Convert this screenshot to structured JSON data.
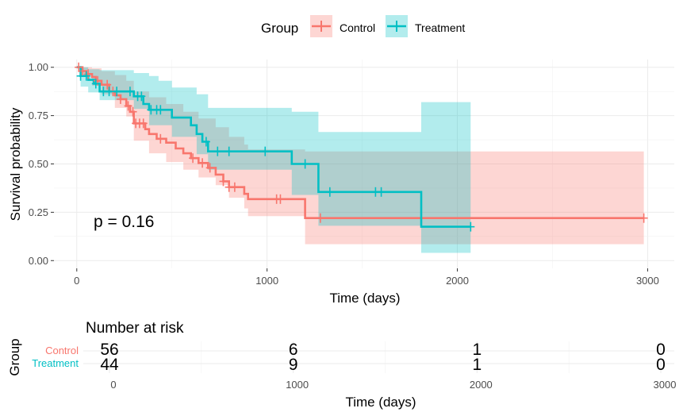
{
  "chart_data": [
    {
      "type": "line",
      "subtype": "kaplan-meier",
      "legend": {
        "title": "Group",
        "position": "top",
        "entries": [
          "Control",
          "Treatment"
        ]
      },
      "xlabel": "Time (days)",
      "ylabel": "Survival probability",
      "xlim": [
        -120,
        3140
      ],
      "ylim": [
        -0.04,
        1.04
      ],
      "x_ticks": [
        0,
        1000,
        2000,
        3000
      ],
      "y_ticks": [
        0.0,
        0.25,
        0.5,
        0.75,
        1.0
      ],
      "y_tick_labels": [
        "0.00",
        "0.25",
        "0.50",
        "0.75",
        "1.00"
      ],
      "grid": true,
      "annotation": "p = 0.16",
      "series": [
        {
          "name": "Control",
          "color": "#F8766D",
          "band_color": "#F8766D",
          "steps": [
            [
              0,
              1.0
            ],
            [
              30,
              0.98
            ],
            [
              50,
              0.965
            ],
            [
              80,
              0.95
            ],
            [
              100,
              0.93
            ],
            [
              130,
              0.91
            ],
            [
              170,
              0.875
            ],
            [
              200,
              0.855
            ],
            [
              230,
              0.835
            ],
            [
              260,
              0.8
            ],
            [
              280,
              0.77
            ],
            [
              300,
              0.71
            ],
            [
              360,
              0.68
            ],
            [
              380,
              0.655
            ],
            [
              420,
              0.63
            ],
            [
              470,
              0.61
            ],
            [
              520,
              0.58
            ],
            [
              560,
              0.555
            ],
            [
              600,
              0.53
            ],
            [
              640,
              0.505
            ],
            [
              690,
              0.48
            ],
            [
              730,
              0.445
            ],
            [
              770,
              0.41
            ],
            [
              800,
              0.38
            ],
            [
              880,
              0.345
            ],
            [
              900,
              0.318
            ],
            [
              1200,
              0.22
            ],
            [
              2980,
              0.22
            ]
          ],
          "upper": [
            [
              0,
              1.0
            ],
            [
              30,
              1.0
            ],
            [
              80,
              0.995
            ],
            [
              130,
              0.98
            ],
            [
              200,
              0.96
            ],
            [
              260,
              0.93
            ],
            [
              300,
              0.875
            ],
            [
              380,
              0.845
            ],
            [
              470,
              0.81
            ],
            [
              560,
              0.77
            ],
            [
              640,
              0.735
            ],
            [
              730,
              0.69
            ],
            [
              800,
              0.64
            ],
            [
              880,
              0.6
            ],
            [
              900,
              0.575
            ],
            [
              1200,
              0.565
            ],
            [
              2980,
              0.565
            ]
          ],
          "lower": [
            [
              0,
              1.0
            ],
            [
              30,
              0.96
            ],
            [
              80,
              0.905
            ],
            [
              130,
              0.86
            ],
            [
              200,
              0.79
            ],
            [
              260,
              0.745
            ],
            [
              300,
              0.62
            ],
            [
              380,
              0.555
            ],
            [
              470,
              0.51
            ],
            [
              560,
              0.47
            ],
            [
              640,
              0.43
            ],
            [
              730,
              0.39
            ],
            [
              800,
              0.325
            ],
            [
              880,
              0.27
            ],
            [
              900,
              0.23
            ],
            [
              1200,
              0.085
            ],
            [
              2980,
              0.085
            ]
          ],
          "censor_x": [
            10,
            30,
            60,
            110,
            160,
            190,
            230,
            270,
            295,
            310,
            330,
            350,
            440,
            610,
            660,
            700,
            770,
            800,
            830,
            1050,
            1070,
            1280,
            2980
          ],
          "at_risk": [
            56,
            6,
            1,
            0
          ]
        },
        {
          "name": "Treatment",
          "color": "#00BFC4",
          "band_color": "#00BFC4",
          "steps": [
            [
              0,
              1.0
            ],
            [
              20,
              0.955
            ],
            [
              60,
              0.935
            ],
            [
              90,
              0.915
            ],
            [
              120,
              0.875
            ],
            [
              300,
              0.85
            ],
            [
              350,
              0.81
            ],
            [
              380,
              0.78
            ],
            [
              500,
              0.74
            ],
            [
              600,
              0.7
            ],
            [
              630,
              0.655
            ],
            [
              660,
              0.615
            ],
            [
              690,
              0.565
            ],
            [
              1130,
              0.5
            ],
            [
              1270,
              0.355
            ],
            [
              1810,
              0.175
            ],
            [
              2070,
              0.175
            ]
          ],
          "upper": [
            [
              0,
              1.0
            ],
            [
              20,
              1.0
            ],
            [
              60,
              0.99
            ],
            [
              120,
              0.985
            ],
            [
              300,
              0.97
            ],
            [
              380,
              0.955
            ],
            [
              430,
              0.93
            ],
            [
              500,
              0.895
            ],
            [
              630,
              0.86
            ],
            [
              690,
              0.79
            ],
            [
              1130,
              0.77
            ],
            [
              1270,
              0.665
            ],
            [
              1810,
              0.82
            ],
            [
              2070,
              0.82
            ]
          ],
          "lower": [
            [
              0,
              1.0
            ],
            [
              20,
              0.9
            ],
            [
              60,
              0.87
            ],
            [
              120,
              0.83
            ],
            [
              300,
              0.785
            ],
            [
              380,
              0.7
            ],
            [
              500,
              0.64
            ],
            [
              630,
              0.55
            ],
            [
              690,
              0.47
            ],
            [
              1130,
              0.34
            ],
            [
              1270,
              0.18
            ],
            [
              1810,
              0.04
            ],
            [
              2070,
              0.04
            ]
          ],
          "censor_x": [
            20,
            50,
            100,
            140,
            170,
            210,
            280,
            320,
            340,
            390,
            420,
            440,
            680,
            740,
            800,
            990,
            1200,
            1330,
            1570,
            1600,
            2070
          ],
          "at_risk": [
            44,
            9,
            1,
            0
          ]
        }
      ]
    },
    {
      "type": "table",
      "title": "Number at risk",
      "xlabel": "Time (days)",
      "ylabel": "Group",
      "x_ticks": [
        0,
        1000,
        2000,
        3000
      ],
      "rows": [
        {
          "label": "Control",
          "color": "#F8766D",
          "values": [
            "56",
            "6",
            "1",
            "0"
          ]
        },
        {
          "label": "Treatment",
          "color": "#00BFC4",
          "values": [
            "44",
            "9",
            "1",
            "0"
          ]
        }
      ]
    }
  ]
}
